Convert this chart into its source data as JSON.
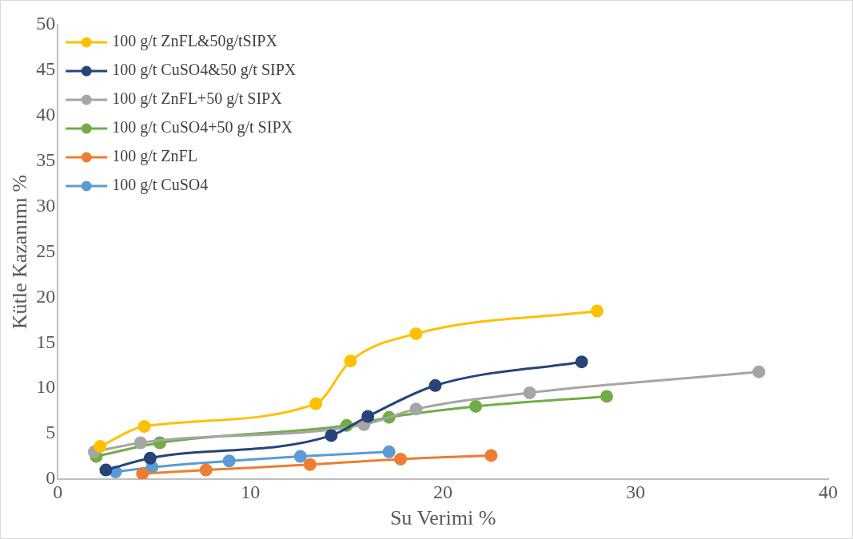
{
  "chart_data": {
    "type": "line",
    "xlabel": "Su Verimi %",
    "ylabel": "Kütle Kazanımı %",
    "xlim": [
      0,
      40
    ],
    "xticks": [
      0,
      10,
      20,
      30,
      40
    ],
    "ylim": [
      0,
      50
    ],
    "yticks": [
      0,
      5,
      10,
      15,
      20,
      25,
      30,
      35,
      40,
      45,
      50
    ],
    "grid": false,
    "legend": "top left",
    "marker": "circle",
    "line_style": "solid",
    "series": [
      {
        "name": "100 g/t ZnFL&50g/tSIPX",
        "color": "#ffc000",
        "x": [
          2.2,
          4.5,
          13.4,
          15.2,
          18.6,
          28.0
        ],
        "values": [
          3.6,
          5.8,
          8.3,
          13.0,
          16.0,
          18.5
        ]
      },
      {
        "name": "100 g/t CuSO4&50 g/t SIPX",
        "color": "#264478",
        "x": [
          2.5,
          4.8,
          14.2,
          16.1,
          19.6,
          27.2
        ],
        "values": [
          1.0,
          2.3,
          4.8,
          6.9,
          10.3,
          12.9
        ]
      },
      {
        "name": "100 g/t ZnFL+50 g/t SIPX",
        "color": "#a5a5a5",
        "x": [
          1.9,
          4.3,
          15.9,
          18.6,
          24.5,
          36.4
        ],
        "values": [
          3.0,
          4.0,
          6.0,
          7.7,
          9.5,
          11.8
        ]
      },
      {
        "name": "100 g/t CuSO4+50 g/t SIPX",
        "color": "#70ad47",
        "x": [
          2.0,
          5.3,
          15.0,
          17.2,
          21.7,
          28.5
        ],
        "values": [
          2.5,
          4.0,
          5.9,
          6.8,
          8.0,
          9.1
        ]
      },
      {
        "name": "100 g/t ZnFL",
        "color": "#ed7d31",
        "x": [
          4.4,
          7.7,
          13.1,
          17.8,
          22.5
        ],
        "values": [
          0.6,
          1.0,
          1.6,
          2.2,
          2.6
        ]
      },
      {
        "name": "100 g/t CuSO4",
        "color": "#5b9bd5",
        "x": [
          3.0,
          4.9,
          8.9,
          12.6,
          17.2
        ],
        "values": [
          0.8,
          1.3,
          2.0,
          2.5,
          3.0
        ]
      }
    ]
  }
}
